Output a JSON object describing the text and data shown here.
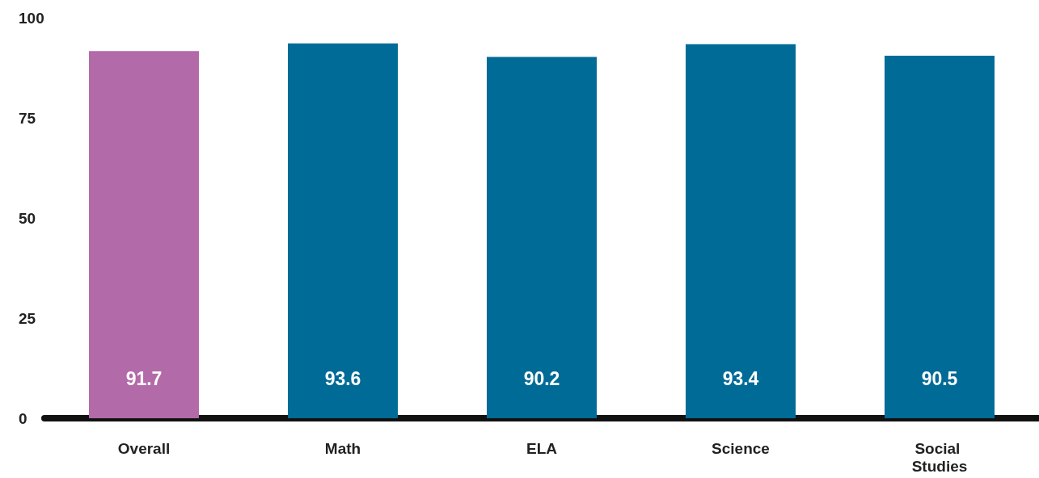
{
  "chart_data": {
    "type": "bar",
    "categories": [
      "Overall",
      "Math",
      "ELA",
      "Science",
      "Social Studies"
    ],
    "values": [
      91.7,
      93.6,
      90.2,
      93.4,
      90.5
    ],
    "colors": [
      "#b36aa8",
      "#006b96",
      "#006b96",
      "#006b96",
      "#006b96"
    ],
    "ylim": [
      0,
      100
    ],
    "yticks": [
      0,
      25,
      50,
      75,
      100
    ],
    "data_labels": true
  }
}
